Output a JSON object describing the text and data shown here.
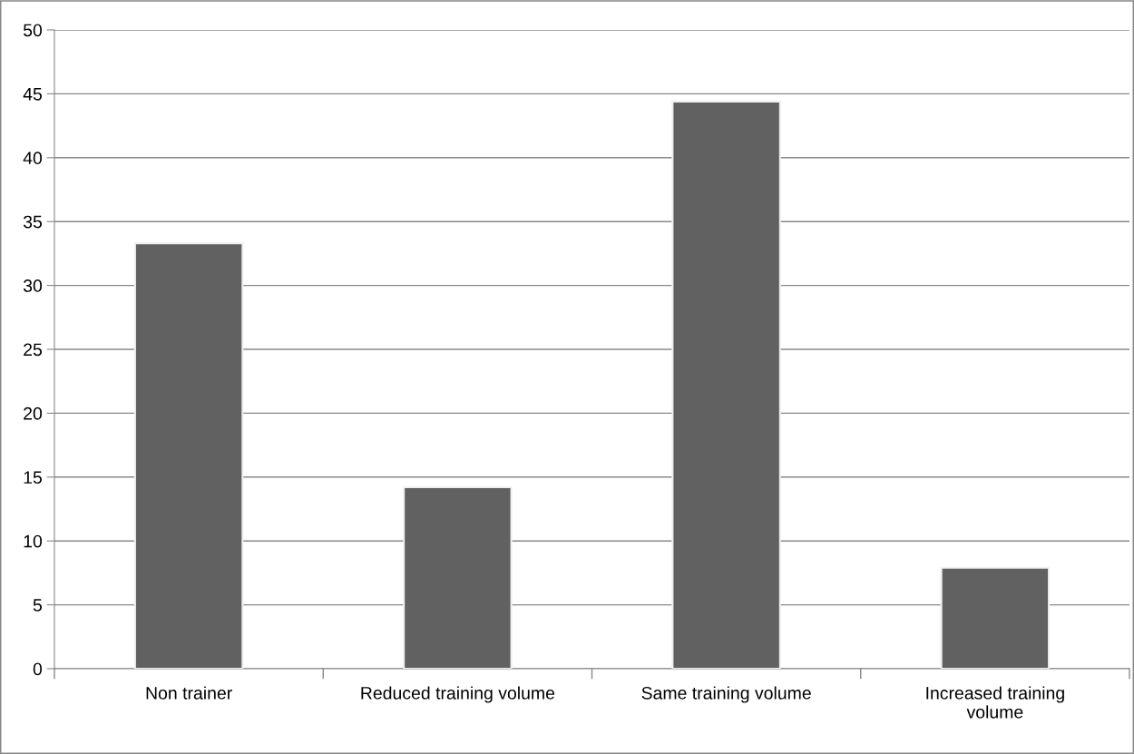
{
  "chart_data": {
    "type": "bar",
    "categories": [
      "Non trainer",
      "Reduced training volume",
      "Same training volume",
      "Increased training\nvolume"
    ],
    "values": [
      33.3,
      14.2,
      44.4,
      7.9
    ],
    "color": "#616161",
    "ylim": [
      0,
      50
    ],
    "yticks": [
      0,
      5,
      10,
      15,
      20,
      25,
      30,
      35,
      40,
      45,
      50
    ],
    "grid": "y"
  }
}
